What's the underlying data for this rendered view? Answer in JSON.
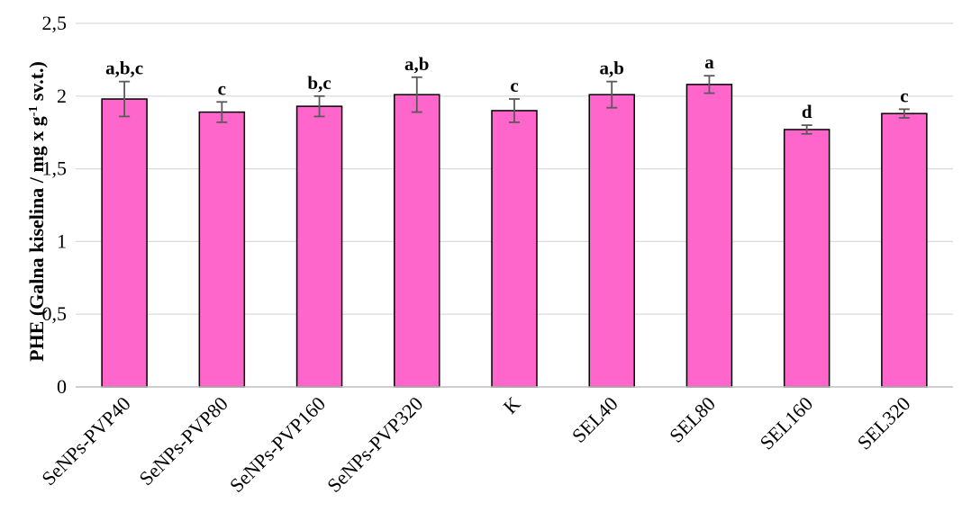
{
  "chart_data": {
    "type": "bar",
    "categories": [
      "SeNPs-PVP40",
      "SeNPs-PVP80",
      "SeNPs-PVP160",
      "SeNPs-PVP320",
      "K",
      "SEL40",
      "SEL80",
      "SEL160",
      "SEL320"
    ],
    "values": [
      1.98,
      1.89,
      1.93,
      2.01,
      1.9,
      2.01,
      2.08,
      1.77,
      1.88
    ],
    "errors": [
      0.12,
      0.07,
      0.07,
      0.12,
      0.08,
      0.09,
      0.06,
      0.03,
      0.03
    ],
    "significance": [
      "a,b,c",
      "c",
      "b,c",
      "a,b",
      "c",
      "a,b",
      "a",
      "d",
      "c"
    ],
    "ylabel": {
      "main": "PHE (Galna kiselina  / mg x g",
      "sup": "-1",
      "tail": " sv.t.)"
    },
    "ylim": [
      0,
      2.5
    ],
    "yticks": [
      "0",
      "0,5",
      "1",
      "1,5",
      "2",
      "2,5"
    ],
    "grid": true,
    "legend": "none",
    "colors": {
      "bar_fill": "#ff66cc",
      "bar_stroke": "#000000",
      "error_bar": "#595959",
      "grid": "#d9d9d9"
    }
  }
}
